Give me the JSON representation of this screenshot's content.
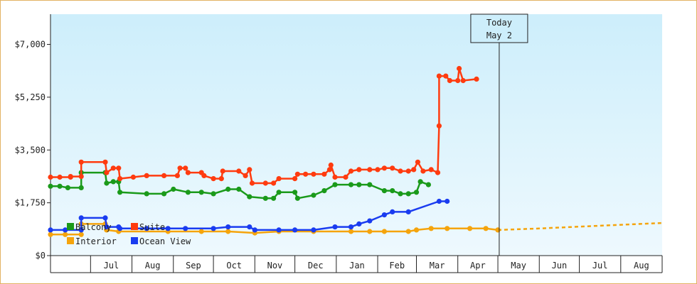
{
  "chart_data": {
    "type": "line",
    "y_ticks": [
      {
        "value": 0,
        "label": "$0"
      },
      {
        "value": 1750,
        "label": "$1,750"
      },
      {
        "value": 3500,
        "label": "$3,500"
      },
      {
        "value": 5250,
        "label": "$5,250"
      },
      {
        "value": 7000,
        "label": "$7,000"
      }
    ],
    "ylim": [
      0,
      8000
    ],
    "xlim": [
      "2023-06-01",
      "2024-09-01"
    ],
    "month_ticks": [
      {
        "label": "Jul",
        "start": "2023-07-01",
        "end": "2023-08-01"
      },
      {
        "label": "Aug",
        "start": "2023-08-01",
        "end": "2023-09-01"
      },
      {
        "label": "Sep",
        "start": "2023-09-01",
        "end": "2023-10-01"
      },
      {
        "label": "Oct",
        "start": "2023-10-01",
        "end": "2023-11-01"
      },
      {
        "label": "Nov",
        "start": "2023-11-01",
        "end": "2023-12-01"
      },
      {
        "label": "Dec",
        "start": "2023-12-01",
        "end": "2024-01-01"
      },
      {
        "label": "Jan",
        "start": "2024-01-01",
        "end": "2024-02-01"
      },
      {
        "label": "Feb",
        "start": "2024-02-01",
        "end": "2024-03-01"
      },
      {
        "label": "Mar",
        "start": "2024-03-01",
        "end": "2024-04-01"
      },
      {
        "label": "Apr",
        "start": "2024-04-01",
        "end": "2024-05-01"
      },
      {
        "label": "May",
        "start": "2024-05-01",
        "end": "2024-06-01"
      },
      {
        "label": "Jun",
        "start": "2024-06-01",
        "end": "2024-07-01"
      },
      {
        "label": "Jul",
        "start": "2024-07-01",
        "end": "2024-08-01"
      },
      {
        "label": "Aug",
        "start": "2024-08-01",
        "end": "2024-09-01"
      }
    ],
    "today": {
      "date": "2024-05-02",
      "line1": "Today",
      "line2": "May 2"
    },
    "legend": [
      {
        "name": "Balcony",
        "color": "#1a9a1a"
      },
      {
        "name": "Suite",
        "color": "#ff3b0f"
      },
      {
        "name": "Interior",
        "color": "#f5a40c"
      },
      {
        "name": "Ocean View",
        "color": "#1a3cf0"
      }
    ],
    "series": [
      {
        "name": "Suite",
        "color": "#ff3b0f",
        "points": [
          [
            "2023-06-01",
            2600
          ],
          [
            "2023-06-08",
            2600
          ],
          [
            "2023-06-16",
            2600
          ],
          [
            "2023-06-16",
            2620
          ],
          [
            "2023-06-24",
            2620
          ],
          [
            "2023-06-24",
            3100
          ],
          [
            "2023-07-12",
            3100
          ],
          [
            "2023-07-13",
            2750
          ],
          [
            "2023-07-18",
            2900
          ],
          [
            "2023-07-22",
            2900
          ],
          [
            "2023-07-23",
            2550
          ],
          [
            "2023-08-02",
            2600
          ],
          [
            "2023-08-12",
            2650
          ],
          [
            "2023-08-25",
            2650
          ],
          [
            "2023-09-04",
            2650
          ],
          [
            "2023-09-06",
            2900
          ],
          [
            "2023-09-10",
            2900
          ],
          [
            "2023-09-12",
            2750
          ],
          [
            "2023-09-22",
            2750
          ],
          [
            "2023-09-24",
            2650
          ],
          [
            "2023-10-01",
            2550
          ],
          [
            "2023-10-07",
            2550
          ],
          [
            "2023-10-08",
            2800
          ],
          [
            "2023-10-20",
            2800
          ],
          [
            "2023-10-25",
            2650
          ],
          [
            "2023-10-28",
            2850
          ],
          [
            "2023-10-30",
            2400
          ],
          [
            "2023-11-09",
            2400
          ],
          [
            "2023-11-15",
            2400
          ],
          [
            "2023-11-19",
            2550
          ],
          [
            "2023-12-01",
            2550
          ],
          [
            "2023-12-03",
            2700
          ],
          [
            "2023-12-09",
            2700
          ],
          [
            "2023-12-15",
            2700
          ],
          [
            "2023-12-23",
            2700
          ],
          [
            "2023-12-27",
            2850
          ],
          [
            "2023-12-28",
            3000
          ],
          [
            "2023-12-31",
            2600
          ],
          [
            "2024-01-08",
            2600
          ],
          [
            "2024-01-12",
            2800
          ],
          [
            "2024-01-18",
            2850
          ],
          [
            "2024-01-26",
            2850
          ],
          [
            "2024-02-01",
            2850
          ],
          [
            "2024-02-06",
            2900
          ],
          [
            "2024-02-12",
            2900
          ],
          [
            "2024-02-18",
            2800
          ],
          [
            "2024-02-24",
            2800
          ],
          [
            "2024-02-28",
            2850
          ],
          [
            "2024-03-02",
            3100
          ],
          [
            "2024-03-06",
            2800
          ],
          [
            "2024-03-12",
            2850
          ],
          [
            "2024-03-17",
            2750
          ],
          [
            "2024-03-18",
            4300
          ],
          [
            "2024-03-18",
            5950
          ],
          [
            "2024-03-23",
            5950
          ],
          [
            "2024-03-26",
            5800
          ],
          [
            "2024-04-01",
            5800
          ],
          [
            "2024-04-02",
            6200
          ],
          [
            "2024-04-05",
            5800
          ],
          [
            "2024-04-15",
            5850
          ]
        ]
      },
      {
        "name": "Balcony",
        "color": "#1a9a1a",
        "points": [
          [
            "2023-06-01",
            2300
          ],
          [
            "2023-06-08",
            2300
          ],
          [
            "2023-06-14",
            2250
          ],
          [
            "2023-06-24",
            2250
          ],
          [
            "2023-06-24",
            2750
          ],
          [
            "2023-07-12",
            2750
          ],
          [
            "2023-07-13",
            2400
          ],
          [
            "2023-07-18",
            2450
          ],
          [
            "2023-07-22",
            2450
          ],
          [
            "2023-07-23",
            2100
          ],
          [
            "2023-08-12",
            2050
          ],
          [
            "2023-08-25",
            2050
          ],
          [
            "2023-09-01",
            2200
          ],
          [
            "2023-09-12",
            2100
          ],
          [
            "2023-09-22",
            2100
          ],
          [
            "2023-10-01",
            2050
          ],
          [
            "2023-10-12",
            2200
          ],
          [
            "2023-10-20",
            2200
          ],
          [
            "2023-10-28",
            1950
          ],
          [
            "2023-11-09",
            1900
          ],
          [
            "2023-11-15",
            1900
          ],
          [
            "2023-11-19",
            2100
          ],
          [
            "2023-12-01",
            2100
          ],
          [
            "2023-12-03",
            1900
          ],
          [
            "2023-12-15",
            2000
          ],
          [
            "2023-12-23",
            2150
          ],
          [
            "2023-12-31",
            2350
          ],
          [
            "2024-01-12",
            2350
          ],
          [
            "2024-01-18",
            2350
          ],
          [
            "2024-01-26",
            2350
          ],
          [
            "2024-02-06",
            2150
          ],
          [
            "2024-02-12",
            2150
          ],
          [
            "2024-02-18",
            2050
          ],
          [
            "2024-02-24",
            2050
          ],
          [
            "2024-03-01",
            2100
          ],
          [
            "2024-03-04",
            2450
          ],
          [
            "2024-03-10",
            2350
          ]
        ]
      },
      {
        "name": "Ocean View",
        "color": "#1a3cf0",
        "points": [
          [
            "2023-06-01",
            850
          ],
          [
            "2023-06-12",
            850
          ],
          [
            "2023-06-24",
            850
          ],
          [
            "2023-06-24",
            1250
          ],
          [
            "2023-07-12",
            1250
          ],
          [
            "2023-07-13",
            950
          ],
          [
            "2023-07-22",
            950
          ],
          [
            "2023-07-23",
            900
          ],
          [
            "2023-08-12",
            900
          ],
          [
            "2023-08-28",
            900
          ],
          [
            "2023-09-10",
            900
          ],
          [
            "2023-10-01",
            900
          ],
          [
            "2023-10-12",
            950
          ],
          [
            "2023-10-28",
            950
          ],
          [
            "2023-11-01",
            850
          ],
          [
            "2023-11-19",
            850
          ],
          [
            "2023-12-01",
            850
          ],
          [
            "2023-12-15",
            850
          ],
          [
            "2023-12-31",
            950
          ],
          [
            "2024-01-12",
            950
          ],
          [
            "2024-01-18",
            1050
          ],
          [
            "2024-01-26",
            1150
          ],
          [
            "2024-02-06",
            1350
          ],
          [
            "2024-02-12",
            1450
          ],
          [
            "2024-02-24",
            1450
          ],
          [
            "2024-03-18",
            1800
          ],
          [
            "2024-03-24",
            1800
          ]
        ]
      },
      {
        "name": "Interior",
        "color": "#f5a40c",
        "points": [
          [
            "2023-06-01",
            700
          ],
          [
            "2023-06-12",
            700
          ],
          [
            "2023-06-24",
            700
          ],
          [
            "2023-06-24",
            1050
          ],
          [
            "2023-07-12",
            1050
          ],
          [
            "2023-07-13",
            850
          ],
          [
            "2023-07-22",
            800
          ],
          [
            "2023-08-28",
            800
          ],
          [
            "2023-09-22",
            800
          ],
          [
            "2023-10-12",
            800
          ],
          [
            "2023-11-01",
            750
          ],
          [
            "2023-11-19",
            800
          ],
          [
            "2023-12-15",
            800
          ],
          [
            "2024-01-12",
            800
          ],
          [
            "2024-01-26",
            800
          ],
          [
            "2024-02-06",
            800
          ],
          [
            "2024-02-24",
            800
          ],
          [
            "2024-03-01",
            850
          ],
          [
            "2024-03-12",
            900
          ],
          [
            "2024-03-24",
            900
          ],
          [
            "2024-04-10",
            900
          ],
          [
            "2024-04-22",
            900
          ],
          [
            "2024-05-01",
            850
          ]
        ]
      }
    ],
    "forecast": {
      "name": "Interior forecast",
      "color": "#f5a40c",
      "points": [
        [
          "2024-05-01",
          850
        ],
        [
          "2024-06-01",
          900
        ],
        [
          "2024-07-01",
          960
        ],
        [
          "2024-08-01",
          1020
        ],
        [
          "2024-09-01",
          1080
        ]
      ]
    }
  }
}
